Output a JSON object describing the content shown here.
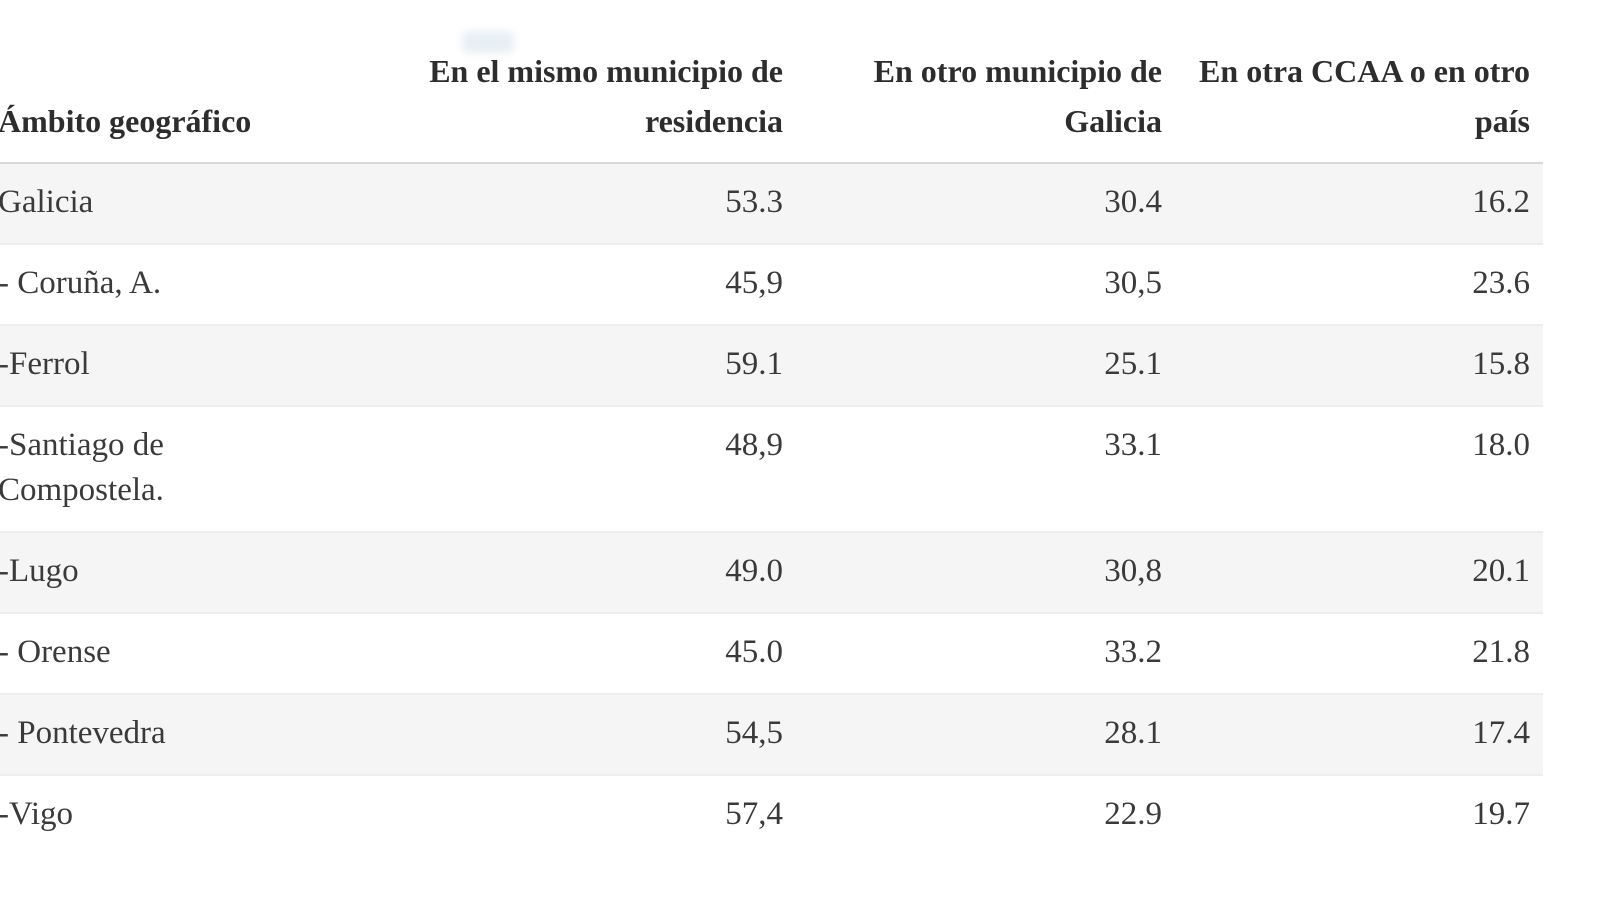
{
  "table": {
    "columns": [
      {
        "label": "Ámbito geográfico",
        "align": "left"
      },
      {
        "label": "En el mismo municipio de\nresidencia",
        "align": "right"
      },
      {
        "label": "En otro municipio de\nGalicia",
        "align": "right"
      },
      {
        "label": "En otra CCAA o en otro\npaís",
        "align": "right"
      }
    ],
    "rows": [
      {
        "label": "Galicia",
        "values": [
          "53.3",
          "30.4",
          "16.2"
        ]
      },
      {
        "label": "- Coruña, A.",
        "values": [
          "45,9",
          "30,5",
          "23.6"
        ]
      },
      {
        "label": "-Ferrol",
        "values": [
          "59.1",
          "25.1",
          "15.8"
        ]
      },
      {
        "label": "-Santiago de\nCompostela.",
        "values": [
          "48,9",
          "33.1",
          "18.0"
        ]
      },
      {
        "label": "-Lugo",
        "values": [
          "49.0",
          "30,8",
          "20.1"
        ]
      },
      {
        "label": "- Orense",
        "values": [
          "45.0",
          "33.2",
          "21.8"
        ]
      },
      {
        "label": "- Pontevedra",
        "values": [
          "54,5",
          "28.1",
          "17.4"
        ]
      },
      {
        "label": "-Vigo",
        "values": [
          "57,4",
          "22.9",
          "19.7"
        ]
      }
    ]
  },
  "chart_data": {
    "type": "table",
    "title": "",
    "xlabel": "Ámbito geográfico",
    "categories": [
      "Galicia",
      "Coruña, A.",
      "Ferrol",
      "Santiago de Compostela",
      "Lugo",
      "Orense",
      "Pontevedra",
      "Vigo"
    ],
    "series": [
      {
        "name": "En el mismo municipio de residencia",
        "values": [
          53.3,
          45.9,
          59.1,
          48.9,
          49.0,
          45.0,
          54.5,
          57.4
        ]
      },
      {
        "name": "En otro municipio de Galicia",
        "values": [
          30.4,
          30.5,
          25.1,
          33.1,
          30.8,
          33.2,
          28.1,
          22.9
        ]
      },
      {
        "name": "En otra CCAA o en otro país",
        "values": [
          16.2,
          23.6,
          15.8,
          18.0,
          20.1,
          21.8,
          17.4,
          19.7
        ]
      }
    ],
    "layout": {
      "striped_rows": true,
      "grid": "horizontal-row-borders",
      "value_alignment": "right"
    }
  },
  "colors": {
    "background": "#ffffff",
    "row_stripe": "#f5f5f5",
    "row_border": "#eeeeee",
    "header_border": "#d9d9d9",
    "text": "#3a3a3a",
    "header_text": "#2d2d2d"
  }
}
